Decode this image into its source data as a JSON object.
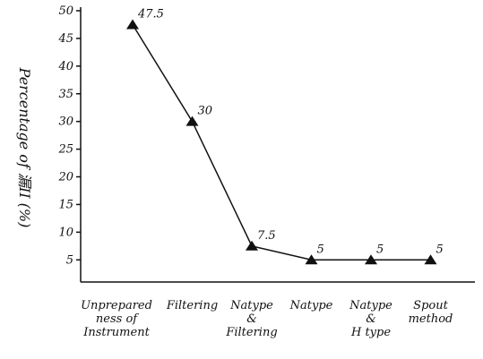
{
  "chart_data": {
    "type": "line",
    "y_label": "Percentage of 漏II (%)",
    "categories": [
      "Unprepared\nness of\nInstrument",
      "Filtering",
      "Natype\n&\nFiltering",
      "Natype",
      "Natype\n&\nH type",
      "Spout\nmethod"
    ],
    "values": [
      47.5,
      30,
      7.5,
      5,
      5,
      5
    ],
    "color": "#111111",
    "ylim": [
      1,
      50
    ],
    "yticks": [
      5,
      10,
      15,
      20,
      25,
      30,
      35,
      40,
      45,
      50
    ]
  }
}
